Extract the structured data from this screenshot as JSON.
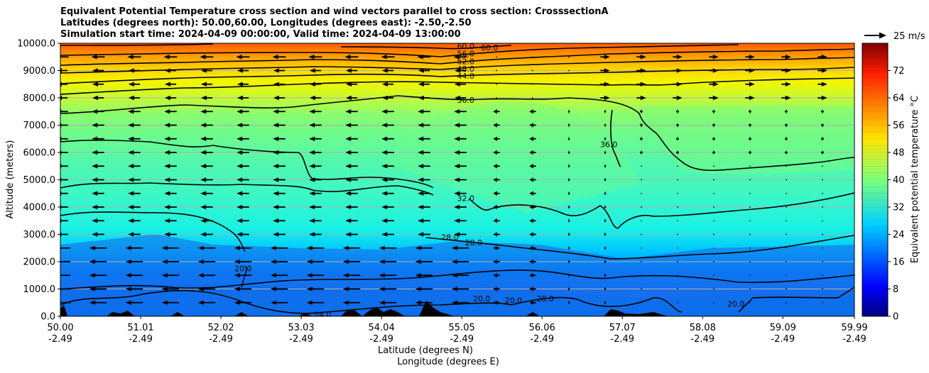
{
  "chart_data": {
    "type": "cross-section",
    "title_lines": [
      "Equivalent Potential Temperature cross section and wind vectors parallel to cross section: CrosssectionA",
      "Latitudes (degrees north): 50.00,60.00, Longitudes (degrees east): -2.50,-2.50",
      "Simulation start time: 2024-04-09 00:00:00, Valid time: 2024-04-09 13:00:00"
    ],
    "ylabel": "Altitude (meters)",
    "xlabel_lat": "Latitude (degrees N)",
    "xlabel_lon": "Longitude (degrees E)",
    "ylim": [
      0,
      10000
    ],
    "x_range": [
      50.0,
      59.99
    ],
    "y_ticks": [
      "0.0",
      "1000.0",
      "2000.0",
      "3000.0",
      "4000.0",
      "5000.0",
      "6000.0",
      "7000.0",
      "8000.0",
      "9000.0",
      "10000.0"
    ],
    "y_tick_values": [
      0,
      1000,
      2000,
      3000,
      4000,
      5000,
      6000,
      7000,
      8000,
      9000,
      10000
    ],
    "x_ticks": [
      {
        "lat": "50.00",
        "lon": "-2.49",
        "v": 50.0
      },
      {
        "lat": "51.01",
        "lon": "-2.49",
        "v": 51.01
      },
      {
        "lat": "52.02",
        "lon": "-2.49",
        "v": 52.02
      },
      {
        "lat": "53.03",
        "lon": "-2.49",
        "v": 53.03
      },
      {
        "lat": "54.04",
        "lon": "-2.49",
        "v": 54.04
      },
      {
        "lat": "55.05",
        "lon": "-2.49",
        "v": 55.05
      },
      {
        "lat": "56.06",
        "lon": "-2.49",
        "v": 56.06
      },
      {
        "lat": "57.07",
        "lon": "-2.49",
        "v": 57.07
      },
      {
        "lat": "58.08",
        "lon": "-2.49",
        "v": 58.08
      },
      {
        "lat": "59.09",
        "lon": "-2.49",
        "v": 59.09
      },
      {
        "lat": "59.99",
        "lon": "-2.49",
        "v": 59.99
      }
    ],
    "colorbar": {
      "label": "Equivalent potential temperature  °C",
      "range": [
        0,
        80
      ],
      "ticks": [
        "0",
        "8",
        "16",
        "24",
        "32",
        "40",
        "48",
        "56",
        "64",
        "72"
      ],
      "tick_values": [
        0,
        8,
        16,
        24,
        32,
        40,
        48,
        56,
        64,
        72
      ]
    },
    "quiver_key": {
      "label": "25 m/s",
      "speed": 25
    },
    "contour_levels": [
      20,
      24,
      28,
      32,
      36,
      40,
      44,
      48,
      52,
      56,
      60
    ],
    "contour_labels": [
      {
        "text": "60.0",
        "lat": 55.1,
        "alt": 9890
      },
      {
        "text": "60.0",
        "lat": 55.4,
        "alt": 9850
      },
      {
        "text": "56.0",
        "lat": 55.1,
        "alt": 9620
      },
      {
        "text": "52.0",
        "lat": 55.1,
        "alt": 9340
      },
      {
        "text": "48.0",
        "lat": 55.1,
        "alt": 9070
      },
      {
        "text": "44.0",
        "lat": 55.1,
        "alt": 8800
      },
      {
        "text": "36.0",
        "lat": 55.1,
        "alt": 7920
      },
      {
        "text": "36.0",
        "lat": 56.9,
        "alt": 6300
      },
      {
        "text": "32.0",
        "lat": 55.1,
        "alt": 4330
      },
      {
        "text": "28.0",
        "lat": 54.9,
        "alt": 2900
      },
      {
        "text": "28.0",
        "lat": 55.2,
        "alt": 2700
      },
      {
        "text": "20.0",
        "lat": 52.3,
        "alt": 1750
      },
      {
        "text": "20.0",
        "lat": 55.3,
        "alt": 650
      },
      {
        "text": "20.0",
        "lat": 55.7,
        "alt": 580
      },
      {
        "text": "20.0",
        "lat": 56.1,
        "alt": 650
      },
      {
        "text": "20.0",
        "lat": 58.5,
        "alt": 450
      },
      {
        "text": "24.0",
        "lat": 53.3,
        "alt": 60
      }
    ]
  }
}
